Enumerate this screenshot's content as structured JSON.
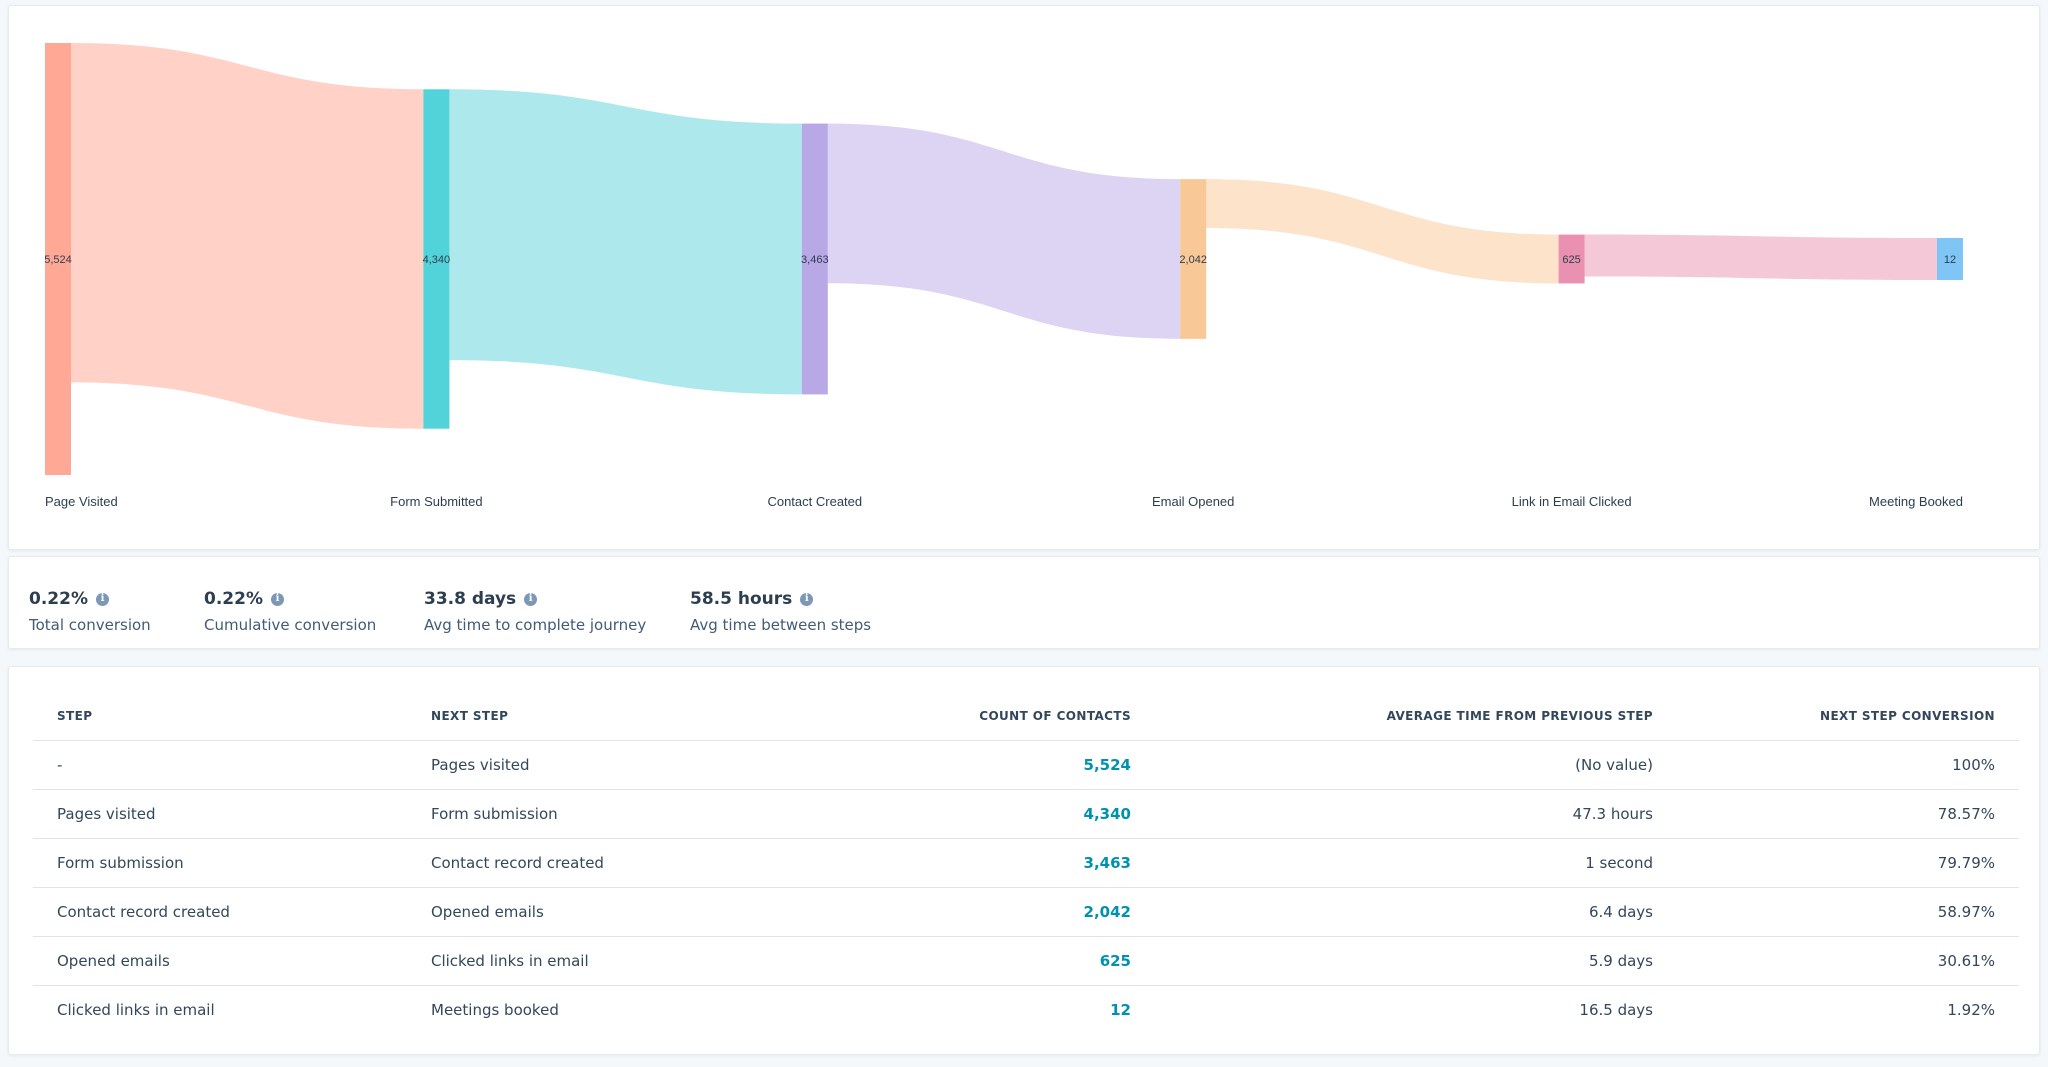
{
  "chart_data": {
    "type": "sankey",
    "stages": [
      {
        "label": "Page Visited",
        "value": 5524,
        "value_label": "5,524",
        "color": "#ffa896"
      },
      {
        "label": "Form Submitted",
        "value": 4340,
        "value_label": "4,340",
        "color": "#51d3d9"
      },
      {
        "label": "Contact Created",
        "value": 3463,
        "value_label": "3,463",
        "color": "#b8a8e6"
      },
      {
        "label": "Email Opened",
        "value": 2042,
        "value_label": "2,042",
        "color": "#f8c896"
      },
      {
        "label": "Link in Email Clicked",
        "value": 625,
        "value_label": "625",
        "color": "#ea90b1"
      },
      {
        "label": "Meeting Booked",
        "value": 12,
        "value_label": "12",
        "color": "#7fc5f5"
      }
    ],
    "flow_colors": [
      "#ffd1c7",
      "#ade9ec",
      "#ddd3f3",
      "#fce3ca",
      "#f5c8d8"
    ]
  },
  "metrics": [
    {
      "value": "0.22%",
      "label": "Total conversion"
    },
    {
      "value": "0.22%",
      "label": "Cumulative conversion"
    },
    {
      "value": "33.8 days",
      "label": "Avg time to complete journey"
    },
    {
      "value": "58.5 hours",
      "label": "Avg time between steps"
    }
  ],
  "info_glyph": "i",
  "table": {
    "headers": [
      "STEP",
      "NEXT STEP",
      "COUNT OF CONTACTS",
      "AVERAGE TIME FROM PREVIOUS STEP",
      "NEXT STEP CONVERSION"
    ],
    "rows": [
      {
        "step": "-",
        "next": "Pages visited",
        "count": "5,524",
        "avg": "(No value)",
        "conv": "100%"
      },
      {
        "step": "Pages visited",
        "next": "Form submission",
        "count": "4,340",
        "avg": "47.3 hours",
        "conv": "78.57%"
      },
      {
        "step": "Form submission",
        "next": "Contact record created",
        "count": "3,463",
        "avg": "1 second",
        "conv": "79.79%"
      },
      {
        "step": "Contact record created",
        "next": "Opened emails",
        "count": "2,042",
        "avg": "6.4 days",
        "conv": "58.97%"
      },
      {
        "step": "Opened emails",
        "next": "Clicked links in email",
        "count": "625",
        "avg": "5.9 days",
        "conv": "30.61%"
      },
      {
        "step": "Clicked links in email",
        "next": "Meetings booked",
        "count": "12",
        "avg": "16.5 days",
        "conv": "1.92%"
      }
    ]
  }
}
